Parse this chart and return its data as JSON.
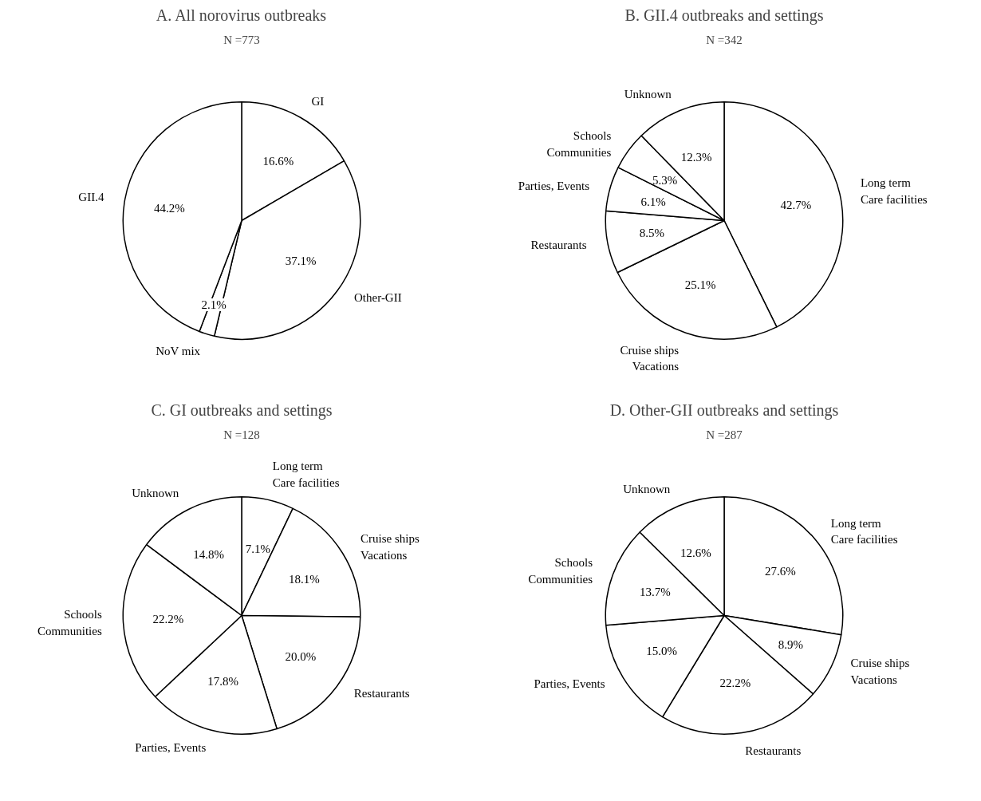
{
  "chart_data": [
    {
      "type": "pie",
      "title": "A. All norovirus outbreaks",
      "subtitle": "N =773",
      "categories": [
        "GI",
        "Other-GII",
        "NoV mix",
        "GII.4"
      ],
      "values": [
        16.6,
        37.1,
        2.1,
        44.2
      ],
      "value_labels": [
        "16.6%",
        "37.1%",
        "2.1%",
        "44.2%"
      ],
      "colors": [
        "#ffffff",
        "#ffffff",
        "#ffffff",
        "#ffffff"
      ],
      "legend": false
    },
    {
      "type": "pie",
      "title": "B. GII.4 outbreaks and settings",
      "subtitle": "N =342",
      "categories": [
        "Long term\nCare facilities",
        "Cruise ships\nVacations",
        "Restaurants",
        "Parties, Events",
        "Schools\nCommunities",
        "Unknown"
      ],
      "values": [
        42.7,
        25.1,
        8.5,
        6.1,
        5.3,
        12.3
      ],
      "value_labels": [
        "42.7%",
        "25.1%",
        "8.5%",
        "6.1%",
        "5.3%",
        "12.3%"
      ],
      "colors": [
        "#ffffff",
        "#ffffff",
        "#ffffff",
        "#ffffff",
        "#ffffff",
        "#ffffff"
      ],
      "legend": false
    },
    {
      "type": "pie",
      "title": "C. GI outbreaks and settings",
      "subtitle": "N =128",
      "categories": [
        "Long term\nCare facilities",
        "Cruise ships\nVacations",
        "Restaurants",
        "Parties, Events",
        "Schools\nCommunities",
        "Unknown"
      ],
      "values": [
        7.1,
        18.1,
        20.0,
        17.8,
        22.2,
        14.8
      ],
      "value_labels": [
        "7.1%",
        "18.1%",
        "20.0%",
        "17.8%",
        "22.2%",
        "14.8%"
      ],
      "colors": [
        "#ffffff",
        "#ffffff",
        "#ffffff",
        "#ffffff",
        "#ffffff",
        "#ffffff"
      ],
      "legend": false
    },
    {
      "type": "pie",
      "title": "D. Other-GII outbreaks and settings",
      "subtitle": "N =287",
      "categories": [
        "Long term\nCare facilities",
        "Cruise ships\nVacations",
        "Restaurants",
        "Parties, Events",
        "Schools\nCommunities",
        "Unknown"
      ],
      "values": [
        27.6,
        8.9,
        22.2,
        15.0,
        13.7,
        12.6
      ],
      "value_labels": [
        "27.6%",
        "8.9%",
        "22.2%",
        "15.0%",
        "13.7%",
        "12.6%"
      ],
      "colors": [
        "#ffffff",
        "#ffffff",
        "#ffffff",
        "#ffffff",
        "#ffffff",
        "#ffffff"
      ],
      "legend": false
    }
  ]
}
